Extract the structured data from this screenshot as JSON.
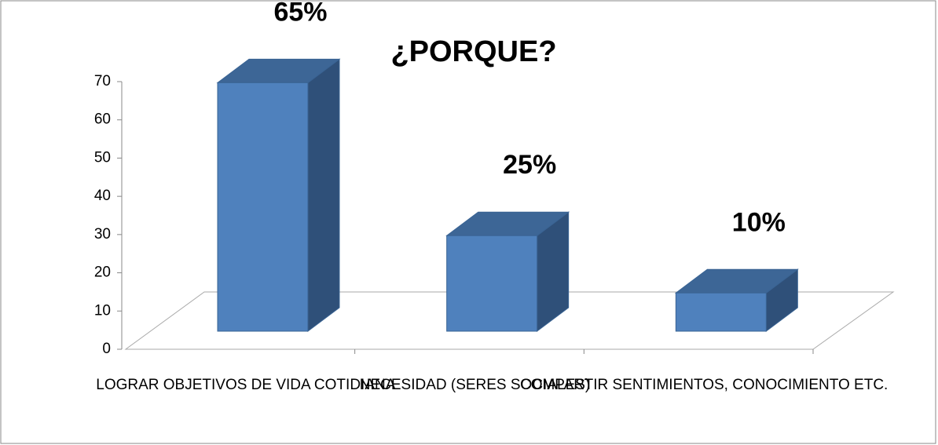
{
  "chart_data": {
    "type": "bar3d",
    "title": "¿PORQUE?",
    "categories": [
      "LOGRAR OBJETIVOS DE VIDA COTIDIANA",
      "NECESIDAD (SERES SOCIALES)",
      "COMPARTIR SENTIMIENTOS, CONOCIMIENTO ETC."
    ],
    "values": [
      65,
      25,
      10
    ],
    "value_labels": [
      "65%",
      "25%",
      "10%"
    ],
    "color": "#4f81bd",
    "ylim": [
      0,
      70
    ],
    "yticks": [
      0,
      10,
      20,
      30,
      40,
      50,
      60,
      70
    ]
  }
}
